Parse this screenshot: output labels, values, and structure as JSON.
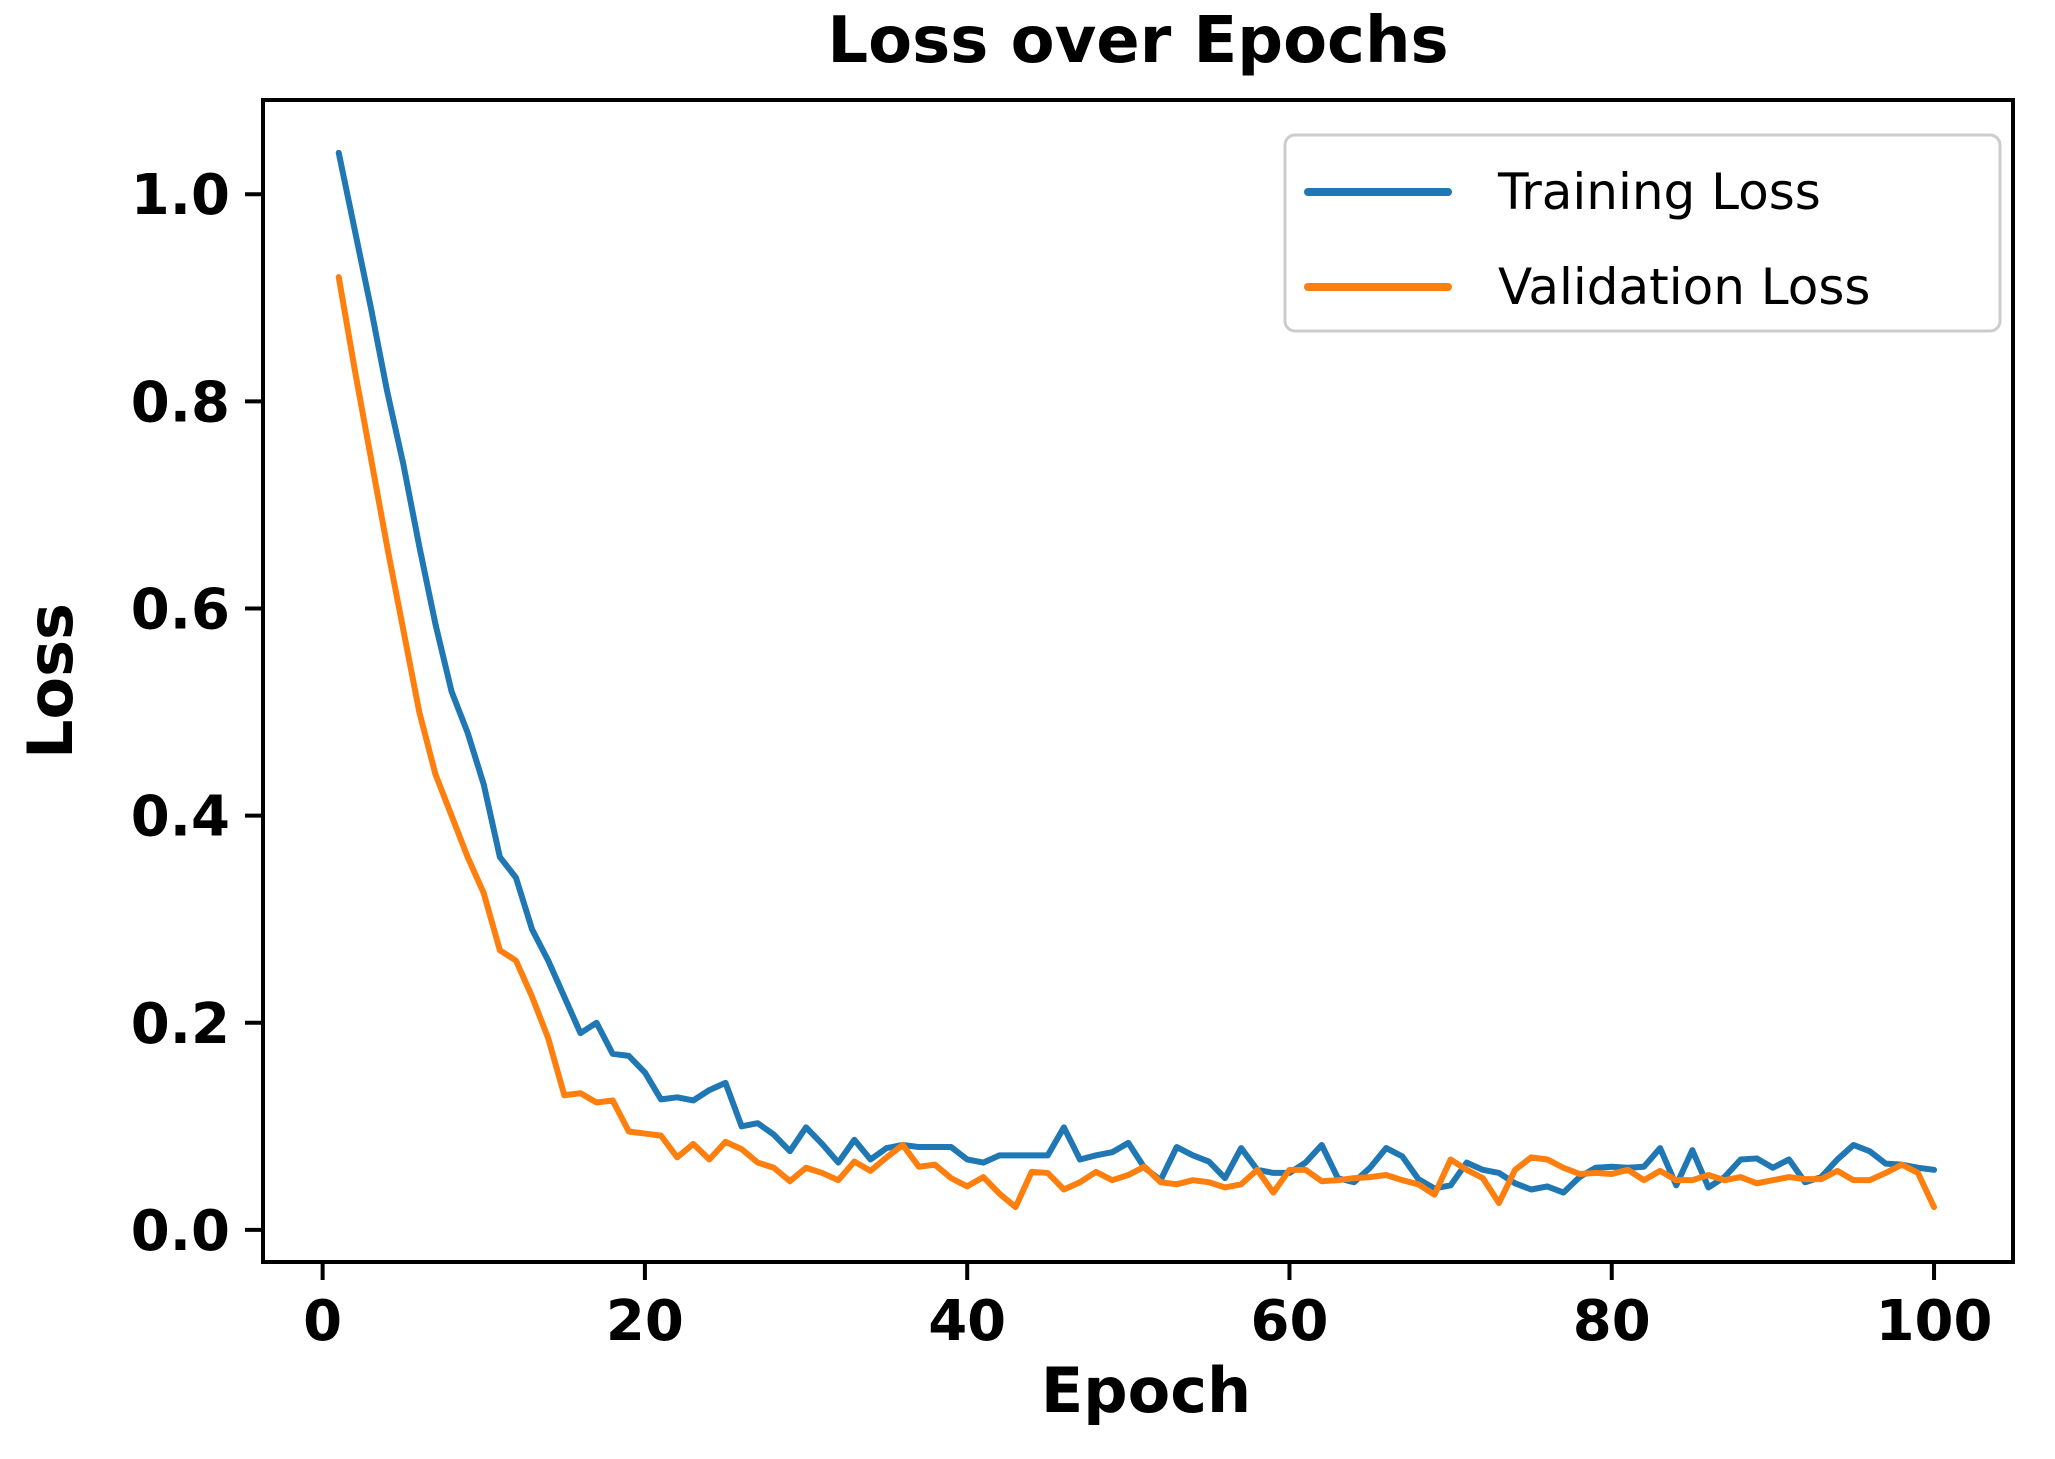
{
  "figure": {
    "background": "#ffffff",
    "text_color": "#000000",
    "spine_color": "#000000"
  },
  "chart_data": {
    "type": "line",
    "title": "Loss over Epochs",
    "xlabel": "Epoch",
    "ylabel": "Loss",
    "grid": false,
    "legend_position": "upper right",
    "xlim": [
      -3.7,
      104.9
    ],
    "ylim": [
      -0.031,
      1.091
    ],
    "x_ticks": [
      0,
      20,
      40,
      60,
      80,
      100
    ],
    "x_tick_labels": [
      "0",
      "20",
      "40",
      "60",
      "80",
      "100"
    ],
    "y_ticks": [
      0.0,
      0.2,
      0.4,
      0.6,
      0.8,
      1.0
    ],
    "y_tick_labels": [
      "0.0",
      "0.2",
      "0.4",
      "0.6",
      "0.8",
      "1.0"
    ],
    "x": [
      1,
      2,
      3,
      4,
      5,
      6,
      7,
      8,
      9,
      10,
      11,
      12,
      13,
      14,
      15,
      16,
      17,
      18,
      19,
      20,
      21,
      22,
      23,
      24,
      25,
      26,
      27,
      28,
      29,
      30,
      31,
      32,
      33,
      34,
      35,
      36,
      37,
      38,
      39,
      40,
      41,
      42,
      43,
      44,
      45,
      46,
      47,
      48,
      49,
      50,
      51,
      52,
      53,
      54,
      55,
      56,
      57,
      58,
      59,
      60,
      61,
      62,
      63,
      64,
      65,
      66,
      67,
      68,
      69,
      70,
      71,
      72,
      73,
      74,
      75,
      76,
      77,
      78,
      79,
      80,
      81,
      82,
      83,
      84,
      85,
      86,
      87,
      88,
      89,
      90,
      91,
      92,
      93,
      94,
      95,
      96,
      97,
      98,
      99,
      100
    ],
    "series": [
      {
        "name": "Training Loss",
        "color": "#1f77b4",
        "values": [
          1.04,
          0.965,
          0.89,
          0.81,
          0.74,
          0.66,
          0.585,
          0.52,
          0.48,
          0.43,
          0.36,
          0.34,
          0.29,
          0.26,
          0.225,
          0.19,
          0.2,
          0.17,
          0.168,
          0.152,
          0.126,
          0.128,
          0.125,
          0.135,
          0.142,
          0.1,
          0.103,
          0.092,
          0.076,
          0.099,
          0.083,
          0.065,
          0.087,
          0.068,
          0.079,
          0.082,
          0.08,
          0.08,
          0.08,
          0.068,
          0.065,
          0.072,
          0.072,
          0.072,
          0.072,
          0.099,
          0.068,
          0.072,
          0.075,
          0.084,
          0.06,
          0.048,
          0.08,
          0.072,
          0.066,
          0.05,
          0.079,
          0.058,
          0.055,
          0.055,
          0.065,
          0.082,
          0.05,
          0.046,
          0.06,
          0.079,
          0.071,
          0.049,
          0.04,
          0.043,
          0.065,
          0.058,
          0.055,
          0.045,
          0.039,
          0.042,
          0.036,
          0.051,
          0.06,
          0.061,
          0.06,
          0.061,
          0.079,
          0.043,
          0.077,
          0.041,
          0.051,
          0.068,
          0.069,
          0.06,
          0.068,
          0.046,
          0.051,
          0.068,
          0.082,
          0.076,
          0.064,
          0.063,
          0.06,
          0.058
        ]
      },
      {
        "name": "Validation Loss",
        "color": "#ff7f0e",
        "values": [
          0.92,
          0.83,
          0.745,
          0.66,
          0.58,
          0.5,
          0.44,
          0.4,
          0.36,
          0.325,
          0.27,
          0.26,
          0.225,
          0.185,
          0.13,
          0.132,
          0.123,
          0.125,
          0.095,
          0.093,
          0.091,
          0.07,
          0.083,
          0.068,
          0.085,
          0.078,
          0.065,
          0.06,
          0.047,
          0.06,
          0.055,
          0.048,
          0.066,
          0.057,
          0.07,
          0.082,
          0.061,
          0.063,
          0.05,
          0.042,
          0.051,
          0.035,
          0.022,
          0.056,
          0.055,
          0.039,
          0.046,
          0.056,
          0.048,
          0.053,
          0.061,
          0.046,
          0.044,
          0.048,
          0.046,
          0.041,
          0.044,
          0.058,
          0.036,
          0.058,
          0.058,
          0.047,
          0.048,
          0.05,
          0.051,
          0.053,
          0.048,
          0.044,
          0.034,
          0.068,
          0.058,
          0.05,
          0.026,
          0.058,
          0.07,
          0.068,
          0.06,
          0.054,
          0.055,
          0.054,
          0.058,
          0.048,
          0.057,
          0.048,
          0.048,
          0.053,
          0.048,
          0.051,
          0.045,
          0.048,
          0.051,
          0.049,
          0.049,
          0.057,
          0.048,
          0.048,
          0.055,
          0.063,
          0.055,
          0.022
        ]
      }
    ]
  }
}
